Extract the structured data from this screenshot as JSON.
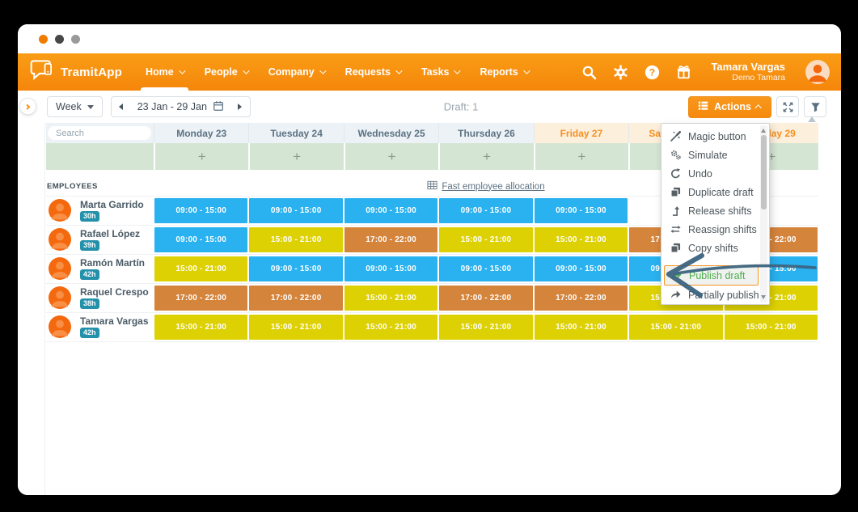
{
  "window": {
    "dot_colors": [
      "#ef7c00",
      "#474747",
      "#9a9a9a"
    ]
  },
  "nav": {
    "brand": "TramitApp",
    "accent_color": "#f7941e",
    "items": [
      {
        "label": "Home",
        "active": true
      },
      {
        "label": "People",
        "active": false
      },
      {
        "label": "Company",
        "active": false
      },
      {
        "label": "Requests",
        "active": false
      },
      {
        "label": "Tasks",
        "active": false
      },
      {
        "label": "Reports",
        "active": false
      }
    ],
    "icons": [
      "search-icon",
      "settings-icon",
      "help-icon",
      "gift-icon"
    ],
    "user": {
      "name": "Tamara Vargas",
      "subtitle": "Demo Tamara"
    }
  },
  "toolbar": {
    "view_selector": "Week",
    "date_range": "23 Jan - 29 Jan",
    "status": "Draft: 1",
    "actions_label": "Actions"
  },
  "schedule": {
    "search_placeholder": "Search",
    "days": [
      {
        "label": "Monday 23",
        "weekend": false
      },
      {
        "label": "Tuesday 24",
        "weekend": false
      },
      {
        "label": "Wednesday 25",
        "weekend": false
      },
      {
        "label": "Thursday 26",
        "weekend": false
      },
      {
        "label": "Friday 27",
        "weekend": true
      },
      {
        "label": "Saturday 28",
        "weekend": true
      },
      {
        "label": "Sunday 29",
        "weekend": true
      }
    ],
    "add_symbol": "+",
    "employees_label": "EMPLOYEES",
    "fast_allocation_label": "Fast employee allocation",
    "shift_times": {
      "morning": "09:00 - 15:00",
      "evening": "15:00 - 21:00",
      "late": "17:00 - 22:00"
    },
    "shift_colors": {
      "morning": "#29b1f0",
      "evening": "#ddd104",
      "late": "#d5843c"
    },
    "employees": [
      {
        "name": "Marta Garrido",
        "hours": "30h",
        "shifts": [
          "morning",
          "morning",
          "morning",
          "morning",
          "morning",
          null,
          null
        ]
      },
      {
        "name": "Rafael López",
        "hours": "39h",
        "shifts": [
          "morning",
          "evening",
          "late",
          "evening",
          "evening",
          "late",
          "late"
        ]
      },
      {
        "name": "Ramón Martín",
        "hours": "42h",
        "shifts": [
          "evening",
          "morning",
          "morning",
          "morning",
          "morning",
          "morning",
          "morning"
        ]
      },
      {
        "name": "Raquel Crespo",
        "hours": "38h",
        "shifts": [
          "late",
          "late",
          "evening",
          "late",
          "late",
          "evening",
          "evening"
        ]
      },
      {
        "name": "Tamara Vargas",
        "hours": "42h",
        "shifts": [
          "evening",
          "evening",
          "evening",
          "evening",
          "evening",
          "evening",
          "evening"
        ]
      }
    ]
  },
  "actions_menu": {
    "items": [
      {
        "label": "Magic button",
        "icon": "magic-wand-icon"
      },
      {
        "label": "Simulate",
        "icon": "gears-icon"
      },
      {
        "label": "Undo",
        "icon": "undo-icon"
      },
      {
        "label": "Duplicate draft",
        "icon": "duplicate-icon"
      },
      {
        "label": "Release shifts",
        "icon": "release-shifts-icon"
      },
      {
        "label": "Reassign shifts",
        "icon": "reassign-shifts-icon"
      },
      {
        "label": "Copy shifts",
        "icon": "copy-shifts-icon"
      },
      {
        "label": "Publish draft",
        "icon": "publish-icon",
        "highlighted": true,
        "color": "#4cae4c"
      },
      {
        "label": "Partially publish",
        "icon": "partial-publish-icon"
      }
    ]
  }
}
